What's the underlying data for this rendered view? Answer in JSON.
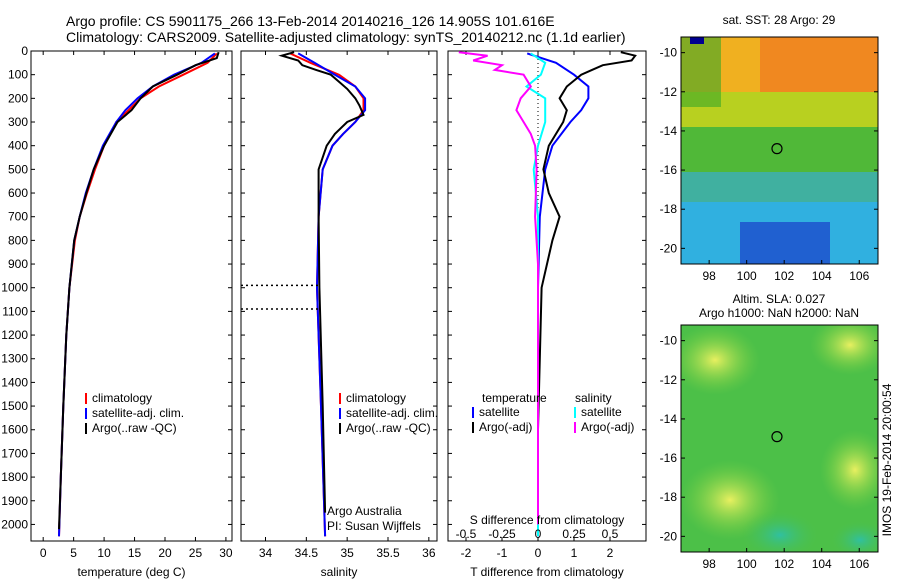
{
  "header": {
    "line1": "Argo profile: CS 5901175_266 13-Feb-2014 20140216_126 14.905S 101.616E",
    "line2": "Climatology: CARS2009. Satellite-adjusted climatology: synTS_20140212.nc (1.1d earlier)"
  },
  "colors": {
    "climatology": "#ff0000",
    "satellite": "#0000ff",
    "argo": "#000000",
    "satellite_sal": "#00ffff",
    "argo_sal": "#ff00ff"
  },
  "chart_data": [
    {
      "type": "line",
      "name": "temperature-profile",
      "xlabel": "temperature (deg C)",
      "xlim": [
        -2,
        31
      ],
      "ylim": [
        2070,
        0
      ],
      "x_ticks": [
        0,
        5,
        10,
        15,
        20,
        25,
        30
      ],
      "y_ticks": [
        0,
        100,
        200,
        300,
        400,
        500,
        600,
        700,
        800,
        900,
        1000,
        1100,
        1200,
        1300,
        1400,
        1500,
        1600,
        1700,
        1800,
        1900,
        2000
      ],
      "legend": [
        "climatology",
        "satellite-adj. clim.",
        "Argo(..raw -QC)"
      ],
      "legend_loc": "lower-right",
      "series": [
        {
          "name": "climatology",
          "depth": [
            10,
            50,
            100,
            150,
            200,
            250,
            300,
            400,
            500,
            600,
            700,
            800,
            1000,
            1200,
            1500,
            1800,
            2050
          ],
          "values": [
            28.5,
            27,
            23,
            19,
            16,
            14,
            12,
            10,
            8.5,
            7.2,
            6,
            5.2,
            4.3,
            3.8,
            3.3,
            2.9,
            2.6
          ]
        },
        {
          "name": "satellite-adj. clim.",
          "depth": [
            10,
            50,
            100,
            150,
            200,
            250,
            300,
            400,
            500,
            600,
            700,
            800,
            1000,
            1200,
            1500,
            1800,
            2050
          ],
          "values": [
            28.2,
            26,
            21.5,
            18,
            15.5,
            13.5,
            12,
            9.8,
            8.3,
            7,
            6,
            5.1,
            4.3,
            3.8,
            3.3,
            2.9,
            2.6
          ]
        },
        {
          "name": "Argo(..raw -QC)",
          "depth": [
            5,
            30,
            60,
            100,
            150,
            200,
            250,
            300,
            400,
            500,
            600,
            700,
            800,
            1000,
            1200,
            1500,
            1800,
            2020
          ],
          "values": [
            28.8,
            28.5,
            25,
            22,
            18,
            16,
            14.5,
            12.2,
            10,
            8.3,
            7.1,
            6,
            5.1,
            4.3,
            3.8,
            3.3,
            2.9,
            2.6
          ]
        }
      ]
    },
    {
      "type": "line",
      "name": "salinity-profile",
      "xlabel": "salinity",
      "xlim": [
        33.7,
        36.1
      ],
      "ylim": [
        2070,
        0
      ],
      "x_ticks": [
        34,
        34.5,
        35,
        35.5,
        36
      ],
      "legend": [
        "climatology",
        "satellite-adj. clim.",
        "Argo(..raw -QC)"
      ],
      "legend_loc": "lower-right",
      "annotations": [
        "Argo Australia",
        "PI: Susan Wijffels"
      ],
      "series": [
        {
          "name": "climatology",
          "depth": [
            10,
            50,
            100,
            150,
            200,
            250,
            300,
            350,
            400,
            500,
            700,
            1000,
            1500,
            2050
          ],
          "values": [
            34.3,
            34.55,
            34.9,
            35.1,
            35.2,
            35.2,
            35.1,
            34.95,
            34.82,
            34.7,
            34.65,
            34.63,
            34.68,
            34.73
          ]
        },
        {
          "name": "satellite-adj. clim.",
          "depth": [
            10,
            50,
            100,
            150,
            200,
            250,
            300,
            350,
            400,
            500,
            700,
            1000,
            1500,
            2050
          ],
          "values": [
            34.4,
            34.6,
            34.85,
            35.1,
            35.22,
            35.22,
            35.1,
            34.95,
            34.82,
            34.7,
            34.65,
            34.63,
            34.68,
            34.73
          ]
        },
        {
          "name": "Argo(..raw -QC)",
          "depth": [
            5,
            20,
            40,
            60,
            80,
            100,
            130,
            160,
            200,
            230,
            270,
            300,
            350,
            400,
            500,
            700,
            1000,
            1500,
            1950
          ],
          "values": [
            34.35,
            34.2,
            34.4,
            34.45,
            34.62,
            34.8,
            34.9,
            35.0,
            35.1,
            35.15,
            35.2,
            35.0,
            34.85,
            34.75,
            34.65,
            34.65,
            34.66,
            34.7,
            34.73
          ]
        }
      ]
    },
    {
      "type": "line",
      "name": "difference-profile",
      "xlabel": "T difference from climatology",
      "xlabel_top": "S difference from climatology",
      "xlim": [
        -2.5,
        3
      ],
      "ylim": [
        2070,
        0
      ],
      "x_ticks": [
        -2,
        -1,
        0,
        1,
        2
      ],
      "x_ticks_s": [
        "-0.5",
        "-0.25",
        "0",
        "0.25",
        "0.5"
      ],
      "legend_headers": [
        "temperature",
        "salinity"
      ],
      "legend": [
        "satellite",
        "Argo(-adj)",
        "satellite",
        "Argo(-adj)"
      ],
      "legend_loc": "lower-right",
      "series": [
        {
          "name": "T satellite",
          "depth": [
            10,
            50,
            100,
            150,
            200,
            250,
            300,
            400,
            500,
            700,
            1000,
            1500,
            2050
          ],
          "values": [
            -0.3,
            0.5,
            1.0,
            1.4,
            1.4,
            1.2,
            0.9,
            0.4,
            0.2,
            0.05,
            0,
            0,
            0
          ]
        },
        {
          "name": "T Argo(-adj)",
          "depth": [
            5,
            20,
            40,
            60,
            80,
            100,
            150,
            200,
            250,
            300,
            400,
            500,
            600,
            700,
            800,
            1000,
            1300,
            1600,
            2000
          ],
          "values": [
            2.3,
            2.7,
            2.6,
            1.8,
            1.5,
            1.2,
            0.8,
            0.6,
            0.8,
            0.7,
            0.3,
            0.15,
            0.3,
            0.6,
            0.4,
            0.1,
            0.05,
            0,
            0
          ]
        },
        {
          "name": "S satellite",
          "depth": [
            10,
            50,
            100,
            150,
            200,
            300,
            400,
            500,
            700,
            1000,
            1500,
            2050
          ],
          "values": [
            -0.05,
            0.05,
            0.02,
            -0.08,
            0.05,
            0.05,
            0,
            -0.03,
            0,
            0,
            0,
            0
          ]
        },
        {
          "name": "S Argo(-adj)",
          "depth": [
            5,
            20,
            40,
            60,
            80,
            100,
            150,
            200,
            250,
            300,
            350,
            400,
            500,
            700,
            900,
            1100,
            1400,
            1700,
            2000
          ],
          "values": [
            -0.55,
            -0.35,
            -0.45,
            -0.25,
            -0.3,
            -0.1,
            -0.05,
            -0.12,
            -0.15,
            -0.1,
            -0.05,
            -0.02,
            -0.01,
            -0.02,
            0,
            0,
            0,
            0,
            0
          ]
        }
      ]
    },
    {
      "type": "heatmap",
      "name": "sst-map",
      "title": "sat. SST: 28 Argo: 29",
      "xlim": [
        96.5,
        107
      ],
      "ylim": [
        -20.8,
        -9.2
      ],
      "x_ticks": [
        98,
        100,
        102,
        104,
        106
      ],
      "y_ticks": [
        -10,
        -12,
        -14,
        -16,
        -18,
        -20
      ],
      "float_position": [
        101.616,
        -14.905
      ]
    },
    {
      "type": "heatmap",
      "name": "sla-map",
      "title_line1": "Altim. SLA: 0.027",
      "title_line2": "Argo h1000: NaN h2000: NaN",
      "xlim": [
        96.5,
        107
      ],
      "ylim": [
        -20.8,
        -9.2
      ],
      "x_ticks": [
        98,
        100,
        102,
        104,
        106
      ],
      "y_ticks": [
        -10,
        -12,
        -14,
        -16,
        -18,
        -20
      ],
      "float_position": [
        101.616,
        -14.905
      ],
      "side_label": "IMOS 19-Feb-2014 20:00:54"
    }
  ]
}
